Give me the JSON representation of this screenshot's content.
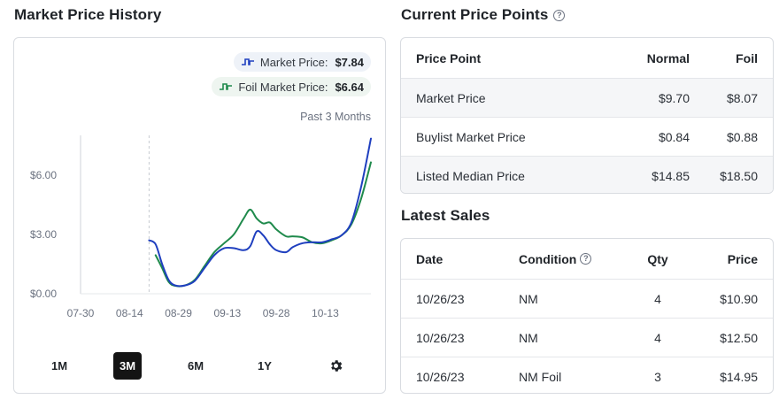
{
  "left": {
    "title": "Market Price History",
    "legend": {
      "market_label": "Market Price:",
      "market_value": "$7.84",
      "foil_label": "Foil Market Price:",
      "foil_value": "$6.64"
    },
    "range_label": "Past 3 Months",
    "range_buttons": [
      "1M",
      "3M",
      "6M",
      "1Y"
    ],
    "active_range": "3M",
    "settings_icon": "gear-icon"
  },
  "colors": {
    "market": "#1f3fbf",
    "foil": "#1f8a4c",
    "active_button": "#141414"
  },
  "chart_data": {
    "type": "line",
    "x_ticks": [
      "07-30",
      "08-14",
      "08-29",
      "09-13",
      "09-28",
      "10-13"
    ],
    "y_ticks": [
      "$0.00",
      "$3.00",
      "$6.00"
    ],
    "ylim": [
      0,
      8
    ],
    "xlim": [
      "07-30",
      "10-27"
    ],
    "divider_date": "08-20",
    "series": [
      {
        "name": "Market Price",
        "color": "#1f3fbf",
        "points": [
          [
            "08-20",
            2.7
          ],
          [
            "08-22",
            2.5
          ],
          [
            "08-24",
            1.5
          ],
          [
            "08-26",
            0.7
          ],
          [
            "08-28",
            0.42
          ],
          [
            "08-31",
            0.42
          ],
          [
            "09-03",
            0.65
          ],
          [
            "09-06",
            1.3
          ],
          [
            "09-09",
            1.95
          ],
          [
            "09-12",
            2.3
          ],
          [
            "09-15",
            2.3
          ],
          [
            "09-18",
            2.2
          ],
          [
            "09-20",
            2.4
          ],
          [
            "09-22",
            3.15
          ],
          [
            "09-24",
            2.95
          ],
          [
            "09-26",
            2.5
          ],
          [
            "09-28",
            2.2
          ],
          [
            "10-01",
            2.1
          ],
          [
            "10-03",
            2.35
          ],
          [
            "10-06",
            2.55
          ],
          [
            "10-09",
            2.6
          ],
          [
            "10-12",
            2.6
          ],
          [
            "10-15",
            2.75
          ],
          [
            "10-18",
            2.95
          ],
          [
            "10-21",
            3.6
          ],
          [
            "10-24",
            5.4
          ],
          [
            "10-27",
            7.84
          ]
        ]
      },
      {
        "name": "Foil Market Price",
        "color": "#1f8a4c",
        "points": [
          [
            "08-22",
            1.95
          ],
          [
            "08-24",
            1.3
          ],
          [
            "08-26",
            0.6
          ],
          [
            "08-28",
            0.4
          ],
          [
            "08-31",
            0.42
          ],
          [
            "09-03",
            0.7
          ],
          [
            "09-06",
            1.4
          ],
          [
            "09-09",
            2.1
          ],
          [
            "09-12",
            2.55
          ],
          [
            "09-15",
            3.0
          ],
          [
            "09-18",
            3.8
          ],
          [
            "09-20",
            4.25
          ],
          [
            "09-22",
            3.8
          ],
          [
            "09-24",
            3.55
          ],
          [
            "09-26",
            3.6
          ],
          [
            "09-28",
            3.25
          ],
          [
            "10-01",
            2.9
          ],
          [
            "10-03",
            2.9
          ],
          [
            "10-06",
            2.85
          ],
          [
            "10-09",
            2.6
          ],
          [
            "10-12",
            2.55
          ],
          [
            "10-15",
            2.7
          ],
          [
            "10-18",
            2.95
          ],
          [
            "10-21",
            3.5
          ],
          [
            "10-24",
            4.8
          ],
          [
            "10-27",
            6.64
          ]
        ]
      }
    ],
    "grid": false,
    "legend": "top-right"
  },
  "current_price_points": {
    "title": "Current Price Points",
    "help_icon": "question-circle-icon",
    "columns": [
      "Price Point",
      "Normal",
      "Foil"
    ],
    "rows": [
      [
        "Market Price",
        "$9.70",
        "$8.07"
      ],
      [
        "Buylist Market Price",
        "$0.84",
        "$0.88"
      ],
      [
        "Listed Median Price",
        "$14.85",
        "$18.50"
      ]
    ]
  },
  "latest_sales": {
    "title": "Latest Sales",
    "columns": [
      "Date",
      "Condition",
      "Qty",
      "Price"
    ],
    "condition_help_icon": "question-circle-icon",
    "rows": [
      [
        "10/26/23",
        "NM",
        "4",
        "$10.90"
      ],
      [
        "10/26/23",
        "NM",
        "4",
        "$12.50"
      ],
      [
        "10/26/23",
        "NM Foil",
        "3",
        "$14.95"
      ]
    ]
  }
}
